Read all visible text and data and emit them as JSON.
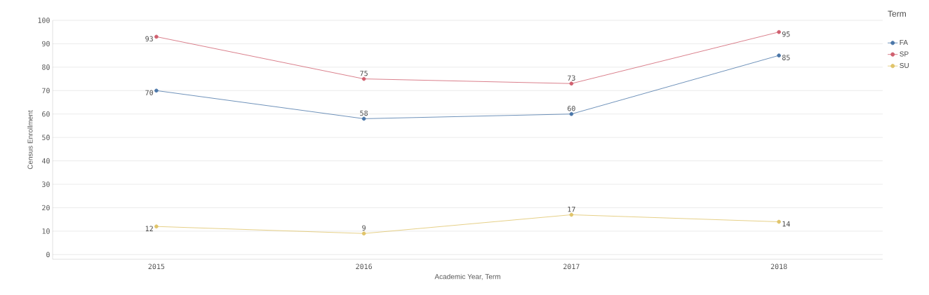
{
  "chart_data": {
    "type": "line",
    "xlabel": "Academic Year, Term",
    "ylabel": "Census Enrollment",
    "legend_title": "Term",
    "categories": [
      "2015",
      "2016",
      "2017",
      "2018"
    ],
    "series": [
      {
        "name": "FA",
        "color": "#4a76a8",
        "values": [
          70,
          58,
          60,
          85
        ]
      },
      {
        "name": "SP",
        "color": "#d0606f",
        "values": [
          93,
          75,
          73,
          95
        ]
      },
      {
        "name": "SU",
        "color": "#e0c46a",
        "values": [
          12,
          9,
          17,
          14
        ]
      }
    ],
    "ylim": [
      -2,
      100
    ],
    "yticks": [
      0,
      10,
      20,
      30,
      40,
      50,
      60,
      70,
      80,
      90,
      100
    ],
    "grid": "y",
    "legend": "top right",
    "marker": "circle",
    "line_style": "solid",
    "data_labels": true
  }
}
